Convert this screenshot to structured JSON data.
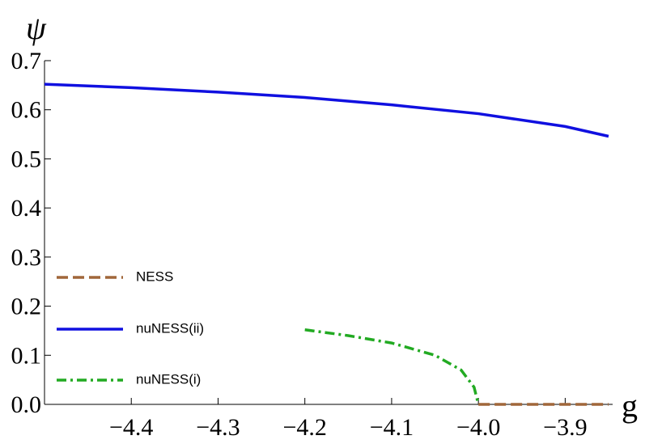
{
  "chart_data": {
    "type": "line",
    "x_label": "g",
    "y_label": "ψ",
    "xlim": [
      -4.5,
      -3.85
    ],
    "ylim": [
      0,
      0.7
    ],
    "xticks": [
      {
        "value": -4.4,
        "label": "−4.4"
      },
      {
        "value": -4.3,
        "label": "−4.3"
      },
      {
        "value": -4.2,
        "label": "−4.2"
      },
      {
        "value": -4.1,
        "label": "−4.1"
      },
      {
        "value": -4.0,
        "label": "−4.0"
      },
      {
        "value": -3.9,
        "label": "−3.9"
      }
    ],
    "yticks": [
      {
        "value": 0,
        "label": "0.0"
      },
      0.1,
      0.2,
      0.3,
      0.4,
      0.5,
      0.6,
      0.7
    ],
    "series": [
      {
        "name": "NESS",
        "color": "#a0673a",
        "dash": "dashed",
        "x": [
          -4.0,
          -3.85
        ],
        "values": [
          0,
          0
        ]
      },
      {
        "name": "nuNESS(ii)",
        "color": "#1010e0",
        "dash": "solid",
        "x": [
          -4.5,
          -4.4,
          -4.3,
          -4.2,
          -4.1,
          -4.0,
          -3.9,
          -3.85
        ],
        "values": [
          0.652,
          0.645,
          0.636,
          0.625,
          0.61,
          0.592,
          0.566,
          0.546
        ]
      },
      {
        "name": "nuNESS(i)",
        "color": "#22aa22",
        "dash": "dashdot",
        "x": [
          -4.2,
          -4.15,
          -4.1,
          -4.05,
          -4.02,
          -4.005,
          -4.0
        ],
        "values": [
          0.152,
          0.14,
          0.125,
          0.1,
          0.07,
          0.035,
          0
        ]
      }
    ]
  }
}
